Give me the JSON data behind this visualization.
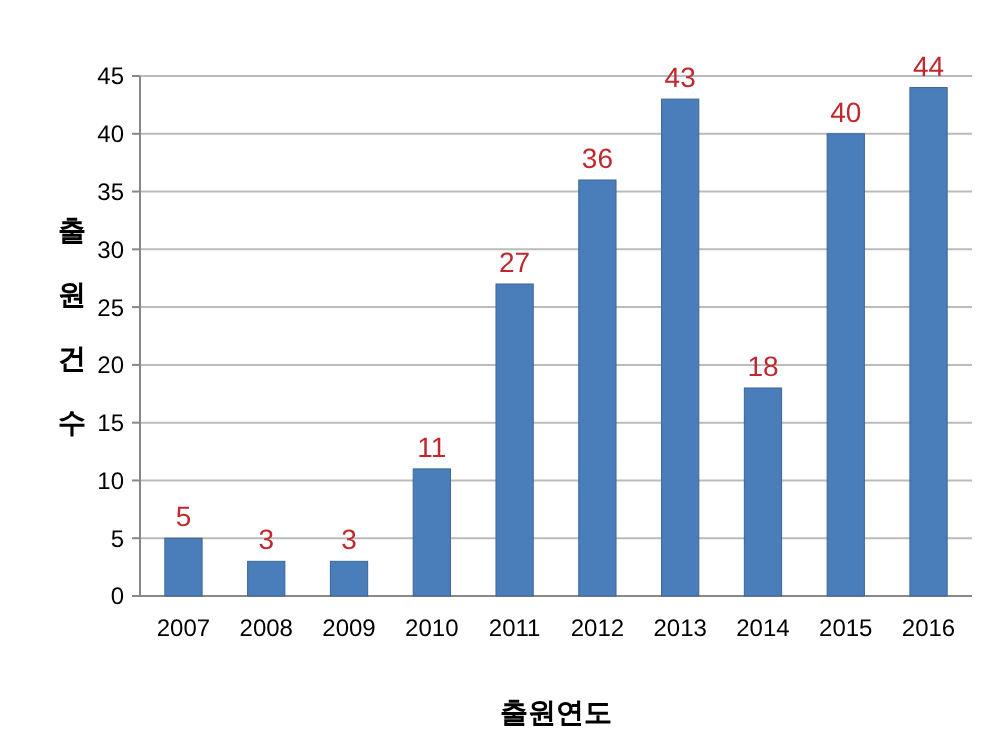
{
  "chart_data": {
    "type": "bar",
    "xlabel": "출원연도",
    "ylabel": "출원건수",
    "categories": [
      "2007",
      "2008",
      "2009",
      "2010",
      "2011",
      "2012",
      "2013",
      "2014",
      "2015",
      "2016"
    ],
    "values": [
      5,
      3,
      3,
      11,
      27,
      36,
      43,
      18,
      40,
      44
    ],
    "color": "#4a7ebb",
    "ylim": [
      0,
      45
    ],
    "yticks": [
      0,
      5,
      10,
      15,
      20,
      25,
      30,
      35,
      40,
      45
    ],
    "grid": "y",
    "data_labels": true
  }
}
